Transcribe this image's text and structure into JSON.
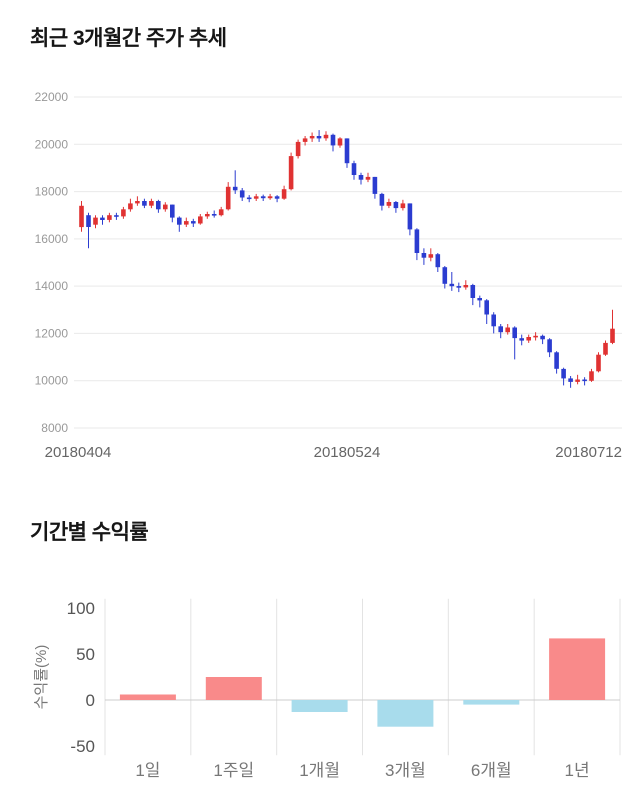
{
  "sections": {
    "price_trend": {
      "title": "최근 3개월간 주가 추세"
    },
    "returns": {
      "title": "기간별 수익률"
    }
  },
  "chart_data": [
    {
      "type": "candlestick",
      "title": "최근 3개월간 주가 추세",
      "ylim": [
        8000,
        22000
      ],
      "y_ticks": [
        8000,
        10000,
        12000,
        14000,
        16000,
        18000,
        20000,
        22000
      ],
      "x_tick_labels": [
        "20180404",
        "20180524",
        "20180712"
      ],
      "colors": {
        "up": "#e03232",
        "down": "#2b3cd0",
        "grid": "#e9e9e9",
        "tick_text": "#999999",
        "axis_text": "#666666"
      },
      "candles_format": "open,close,low,high",
      "candles": [
        [
          16500,
          17400,
          16300,
          17600
        ],
        [
          17000,
          16500,
          15600,
          17100
        ],
        [
          16600,
          16900,
          16450,
          17000
        ],
        [
          16900,
          16800,
          16600,
          17000
        ],
        [
          16800,
          17000,
          16700,
          17100
        ],
        [
          17000,
          16950,
          16800,
          17100
        ],
        [
          16950,
          17250,
          16850,
          17350
        ],
        [
          17250,
          17500,
          17150,
          17700
        ],
        [
          17500,
          17600,
          17400,
          17800
        ],
        [
          17600,
          17400,
          17300,
          17700
        ],
        [
          17400,
          17600,
          17300,
          17700
        ],
        [
          17600,
          17250,
          17100,
          17650
        ],
        [
          17250,
          17450,
          17150,
          17550
        ],
        [
          17450,
          16900,
          16700,
          17450
        ],
        [
          16900,
          16600,
          16300,
          16950
        ],
        [
          16600,
          16750,
          16500,
          16900
        ],
        [
          16750,
          16650,
          16500,
          16850
        ],
        [
          16650,
          16950,
          16600,
          17050
        ],
        [
          16950,
          17050,
          16850,
          17150
        ],
        [
          17050,
          17000,
          16900,
          17200
        ],
        [
          17000,
          17250,
          16950,
          17350
        ],
        [
          17250,
          18200,
          17200,
          18400
        ],
        [
          18200,
          18050,
          17900,
          18900
        ],
        [
          18050,
          17750,
          17600,
          18150
        ],
        [
          17750,
          17700,
          17550,
          17850
        ],
        [
          17700,
          17800,
          17600,
          17900
        ],
        [
          17800,
          17720,
          17600,
          17870
        ],
        [
          17720,
          17800,
          17650,
          17900
        ],
        [
          17800,
          17700,
          17550,
          17850
        ],
        [
          17700,
          18100,
          17650,
          18250
        ],
        [
          18100,
          19500,
          18050,
          19650
        ],
        [
          19500,
          20100,
          19400,
          20200
        ],
        [
          20100,
          20250,
          19950,
          20350
        ],
        [
          20250,
          20350,
          20100,
          20500
        ],
        [
          20350,
          20250,
          20100,
          20600
        ],
        [
          20250,
          20400,
          20150,
          20550
        ],
        [
          20400,
          19950,
          19700,
          20450
        ],
        [
          19950,
          20250,
          19850,
          20300
        ],
        [
          20250,
          19200,
          19000,
          20250
        ],
        [
          19200,
          18700,
          18500,
          19300
        ],
        [
          18700,
          18500,
          18300,
          18800
        ],
        [
          18500,
          18620,
          18400,
          18800
        ],
        [
          18620,
          17900,
          17700,
          18620
        ],
        [
          17900,
          17400,
          17200,
          17950
        ],
        [
          17400,
          17560,
          17300,
          17700
        ],
        [
          17560,
          17300,
          17100,
          17600
        ],
        [
          17300,
          17500,
          17200,
          17650
        ],
        [
          17500,
          16400,
          16150,
          17500
        ],
        [
          16400,
          15400,
          15100,
          16450
        ],
        [
          15400,
          15200,
          14900,
          15600
        ],
        [
          15200,
          15350,
          15050,
          15600
        ],
        [
          15350,
          14800,
          14600,
          15400
        ],
        [
          14800,
          14100,
          13900,
          14850
        ],
        [
          14100,
          14000,
          13800,
          14600
        ],
        [
          14000,
          13950,
          13750,
          14150
        ],
        [
          13950,
          14050,
          13850,
          14250
        ],
        [
          14050,
          13500,
          13200,
          14100
        ],
        [
          13500,
          13400,
          13100,
          13600
        ],
        [
          13400,
          12800,
          12400,
          13450
        ],
        [
          12800,
          12300,
          12000,
          12900
        ],
        [
          12300,
          12050,
          11800,
          12400
        ],
        [
          12050,
          12250,
          11950,
          12400
        ],
        [
          12250,
          11800,
          10900,
          12300
        ],
        [
          11800,
          11700,
          11500,
          11950
        ],
        [
          11700,
          11850,
          11600,
          11950
        ],
        [
          11850,
          11900,
          11700,
          12050
        ],
        [
          11900,
          11750,
          11550,
          11950
        ],
        [
          11750,
          11200,
          11000,
          11800
        ],
        [
          11200,
          10500,
          10300,
          11250
        ],
        [
          10500,
          10100,
          9800,
          10550
        ],
        [
          10100,
          9950,
          9700,
          10200
        ],
        [
          9950,
          10050,
          9850,
          10250
        ],
        [
          10050,
          10000,
          9800,
          10150
        ],
        [
          10000,
          10400,
          9950,
          10500
        ],
        [
          10400,
          11100,
          10350,
          11200
        ],
        [
          11100,
          11600,
          11050,
          11700
        ],
        [
          11600,
          12200,
          11550,
          13000
        ]
      ]
    },
    {
      "type": "bar",
      "title": "기간별 수익률",
      "ylabel": "수익률(%)",
      "categories": [
        "1일",
        "1주일",
        "1개월",
        "3개월",
        "6개월",
        "1년"
      ],
      "values": [
        6,
        25,
        -13,
        -29,
        -5,
        67
      ],
      "y_ticks": [
        100,
        50,
        0,
        -50
      ],
      "ylim": [
        -60,
        110
      ],
      "colors": {
        "positive": "#f98a8a",
        "negative": "#a8dcec",
        "grid": "#e3e3e3",
        "zero_line": "#cccccc",
        "tick_text": "#555555",
        "category_text": "#777777",
        "ylabel_text": "#777777"
      }
    }
  ]
}
